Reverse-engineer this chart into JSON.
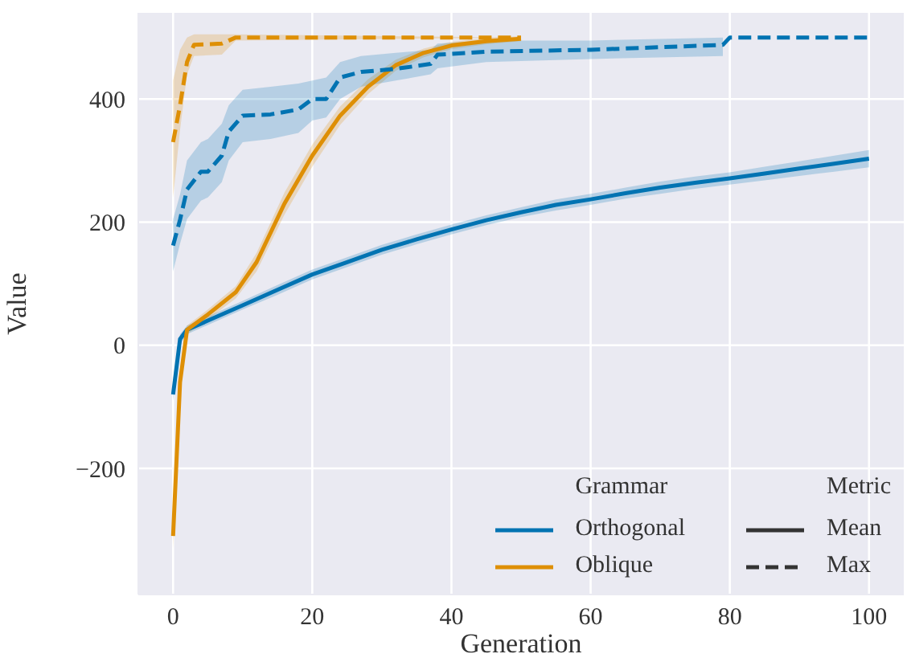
{
  "chart_data": {
    "type": "line",
    "xlabel": "Generation",
    "ylabel": "Value",
    "xlim": [
      -5,
      105
    ],
    "xticks": [
      0,
      20,
      40,
      60,
      80,
      100
    ],
    "ylim": [
      -405,
      540
    ],
    "yticks": [
      {
        "value": -200,
        "label": "−200"
      },
      0,
      200,
      400
    ],
    "grid": true,
    "legend": "bottom right",
    "legend_title": "Grammar",
    "annotations": [
      "Metric",
      "Mean",
      "Max"
    ],
    "series": [
      {
        "name": "Orthogonal",
        "color": "#0173b2",
        "line_style": "solid",
        "x": [
          0,
          1,
          2,
          5,
          10,
          15,
          20,
          25,
          30,
          35,
          40,
          45,
          50,
          55,
          60,
          65,
          70,
          75,
          80,
          85,
          90,
          95,
          100
        ],
        "values": [
          -80,
          10,
          25,
          40,
          65,
          90,
          115,
          135,
          155,
          172,
          188,
          203,
          216,
          228,
          237,
          247,
          256,
          264,
          271,
          279,
          287,
          295,
          303
        ],
        "lower": [
          -90,
          2,
          18,
          33,
          58,
          82,
          107,
          127,
          147,
          164,
          180,
          195,
          208,
          219,
          228,
          238,
          246,
          254,
          261,
          268,
          275,
          282,
          289
        ],
        "upper": [
          -70,
          18,
          32,
          47,
          72,
          98,
          123,
          143,
          163,
          180,
          196,
          211,
          224,
          237,
          246,
          256,
          266,
          274,
          281,
          290,
          299,
          308,
          317
        ]
      },
      {
        "name": "Oblique",
        "color": "#de8f05",
        "line_style": "solid",
        "x": [
          0,
          1,
          2,
          5,
          9,
          12,
          16,
          20,
          24,
          28,
          32,
          36,
          40,
          45,
          50
        ],
        "values": [
          -310,
          -60,
          25,
          50,
          86,
          135,
          230,
          308,
          373,
          420,
          455,
          475,
          487,
          494,
          498
        ],
        "lower": [
          -330,
          -80,
          18,
          42,
          76,
          120,
          212,
          290,
          358,
          408,
          446,
          468,
          481,
          489,
          494
        ],
        "upper": [
          -290,
          -40,
          32,
          58,
          96,
          150,
          248,
          326,
          388,
          432,
          464,
          482,
          493,
          499,
          502
        ]
      },
      {
        "color": "#0173b2",
        "line_style": "dashed",
        "x": [
          0,
          1,
          2,
          4,
          5,
          7,
          8,
          10,
          14,
          18,
          20,
          22,
          24,
          27,
          32,
          37,
          38,
          45,
          60,
          79,
          80,
          100
        ],
        "values": [
          162,
          204,
          253,
          282,
          282,
          308,
          347,
          373,
          375,
          383,
          400,
          400,
          435,
          444,
          449,
          457,
          472,
          477,
          480,
          488,
          500,
          500
        ],
        "lower": [
          120,
          165,
          205,
          235,
          240,
          265,
          300,
          330,
          335,
          345,
          365,
          370,
          400,
          420,
          430,
          440,
          450,
          460,
          465,
          470,
          null,
          null
        ],
        "upper": [
          205,
          245,
          300,
          330,
          335,
          360,
          390,
          415,
          420,
          425,
          430,
          435,
          460,
          470,
          475,
          480,
          490,
          495,
          495,
          500,
          null,
          null
        ]
      },
      {
        "color": "#de8f05",
        "line_style": "dashed",
        "x": [
          0,
          1,
          2,
          3,
          7,
          9,
          50
        ],
        "values": [
          330,
          390,
          460,
          488,
          490,
          500,
          500
        ],
        "lower": [
          240,
          350,
          440,
          470,
          472,
          495,
          500
        ],
        "upper": [
          430,
          480,
          500,
          505,
          505,
          505,
          500
        ]
      }
    ]
  }
}
